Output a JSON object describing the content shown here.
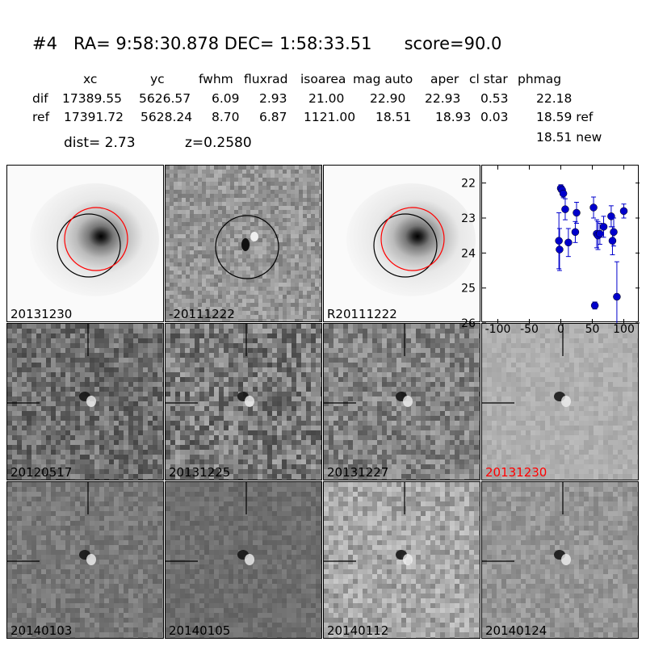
{
  "title": {
    "id": "#4",
    "ra": "RA= 9:58:30.878",
    "dec": "DEC= 1:58:33.51",
    "score": "score=90.0"
  },
  "table": {
    "headers": [
      "xc",
      "yc",
      "fwhm",
      "fluxrad",
      "isoarea",
      "mag auto",
      "aper",
      "cl star",
      "phmag"
    ],
    "rows": [
      {
        "label": "dif",
        "values": [
          "17389.55",
          "5626.57",
          "6.09",
          "2.93",
          "21.00",
          "22.90",
          "22.93",
          "0.53",
          "22.18"
        ]
      },
      {
        "label": "ref",
        "values": [
          "17391.72",
          "5628.24",
          "8.70",
          "6.87",
          "1121.00",
          "18.51",
          "18.93",
          "0.03",
          "18.59 ref"
        ]
      }
    ],
    "extra": "18.51 new"
  },
  "dist_text": "dist=  2.73",
  "z_text": "z=0.2580",
  "panels": [
    {
      "label": "20131230",
      "kind": "galaxy",
      "red": false
    },
    {
      "label": "-20111222",
      "kind": "diff",
      "red": false
    },
    {
      "label": "R20111222",
      "kind": "galaxy",
      "red": false
    },
    {
      "label": "20120517",
      "kind": "stamp",
      "red": false
    },
    {
      "label": "20131225",
      "kind": "stamp",
      "red": false
    },
    {
      "label": "20131227",
      "kind": "stamp",
      "red": false
    },
    {
      "label": "20131230",
      "kind": "stamp",
      "red": true
    },
    {
      "label": "20140103",
      "kind": "stamp",
      "red": false
    },
    {
      "label": "20140105",
      "kind": "stamp",
      "red": false
    },
    {
      "label": "20140112",
      "kind": "stamp",
      "red": false
    },
    {
      "label": "20140124",
      "kind": "stamp",
      "red": false
    }
  ],
  "chart_data": {
    "type": "scatter",
    "title": "",
    "xlabel": "",
    "ylabel": "",
    "xlim": [
      -125,
      125
    ],
    "ylim": [
      26,
      21.5
    ],
    "xticks": [
      -100,
      -50,
      0,
      50,
      100
    ],
    "yticks": [
      22,
      23,
      24,
      25,
      26
    ],
    "marker_color": "#0000cc",
    "points": [
      {
        "x": -3,
        "y": 23.65,
        "err": 0.8
      },
      {
        "x": -2,
        "y": 23.9,
        "err": 0.6
      },
      {
        "x": 0,
        "y": 22.15,
        "err": 0.1
      },
      {
        "x": 2,
        "y": 22.2,
        "err": 0.1
      },
      {
        "x": 4,
        "y": 22.3,
        "err": 0.12
      },
      {
        "x": 7,
        "y": 22.75,
        "err": 0.3
      },
      {
        "x": 12,
        "y": 23.7,
        "err": 0.4
      },
      {
        "x": 23,
        "y": 23.4,
        "err": 0.3
      },
      {
        "x": 25,
        "y": 22.85,
        "err": 0.3
      },
      {
        "x": 52,
        "y": 22.7,
        "err": 0.3
      },
      {
        "x": 54,
        "y": 25.5,
        "err": 0.1
      },
      {
        "x": 57,
        "y": 23.45,
        "err": 0.4
      },
      {
        "x": 59,
        "y": 23.5,
        "err": 0.4
      },
      {
        "x": 62,
        "y": 23.45,
        "err": 0.3
      },
      {
        "x": 68,
        "y": 23.25,
        "err": 0.3
      },
      {
        "x": 80,
        "y": 22.95,
        "err": 0.3
      },
      {
        "x": 82,
        "y": 23.65,
        "err": 0.4
      },
      {
        "x": 84,
        "y": 23.4,
        "err": 0.4
      },
      {
        "x": 89,
        "y": 25.25,
        "err": 1.0
      },
      {
        "x": 100,
        "y": 22.8,
        "err": 0.2
      }
    ]
  }
}
